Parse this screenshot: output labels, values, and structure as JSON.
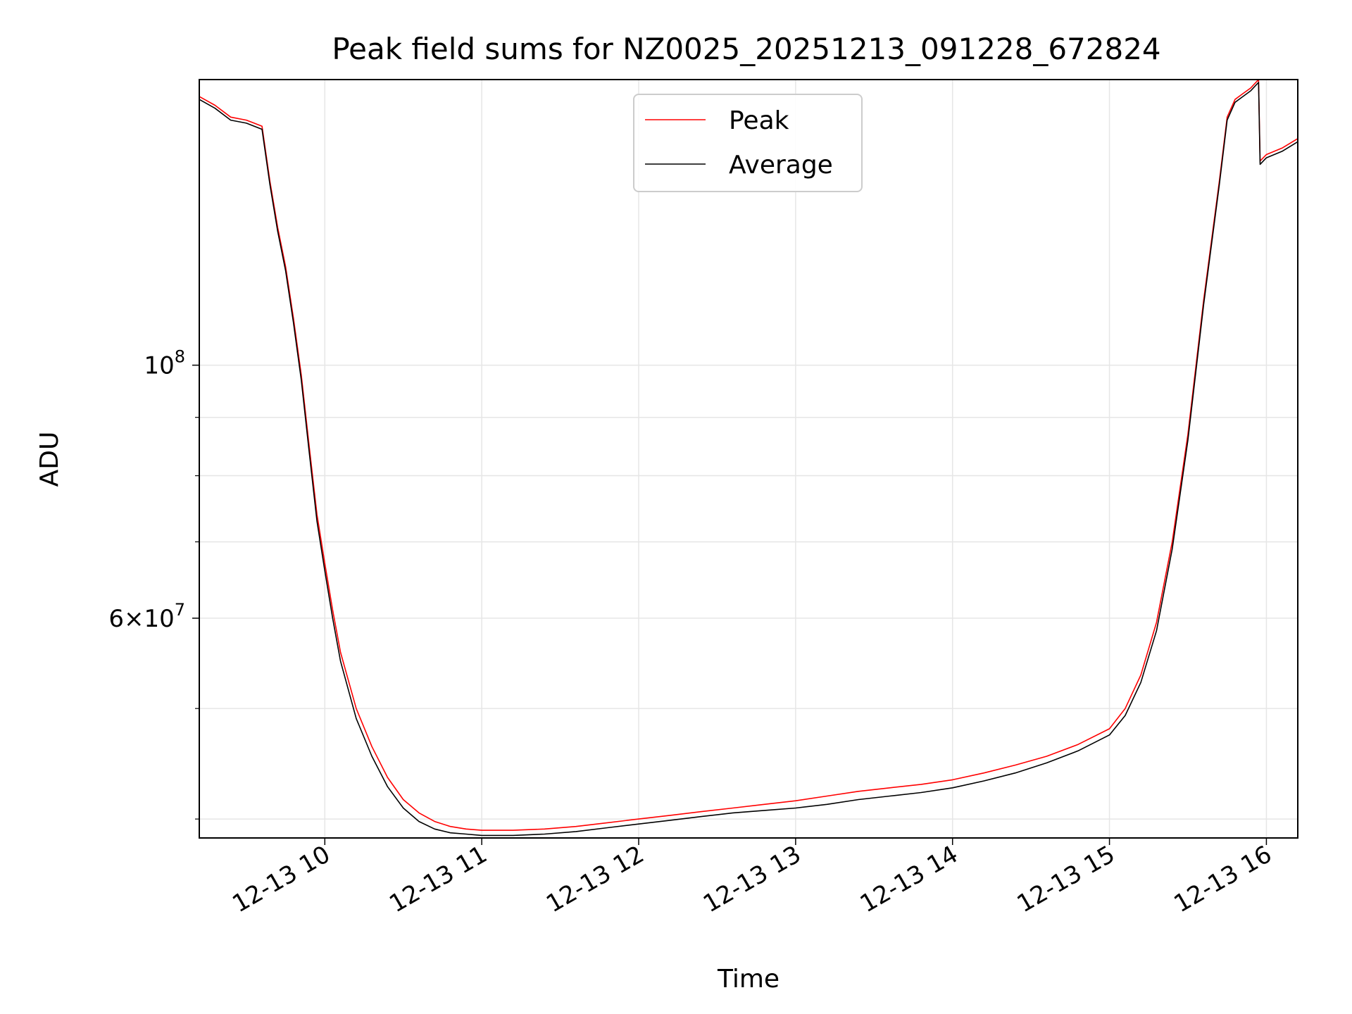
{
  "chart_data": {
    "type": "line",
    "title": "Peak field sums for NZ0025_20251213_091228_672824",
    "xlabel": "Time",
    "ylabel": "ADU",
    "yscale": "log",
    "x_unit": "hours since 2025-12-13 00:00",
    "xlim": [
      9.2,
      16.2
    ],
    "ylim": [
      38500000,
      178000000
    ],
    "grid": true,
    "legend_position": "upper center",
    "x_ticks": [
      {
        "value": 10,
        "label": "12-13 10"
      },
      {
        "value": 11,
        "label": "12-13 11"
      },
      {
        "value": 12,
        "label": "12-13 12"
      },
      {
        "value": 13,
        "label": "12-13 13"
      },
      {
        "value": 14,
        "label": "12-13 14"
      },
      {
        "value": 15,
        "label": "12-13 15"
      },
      {
        "value": 16,
        "label": "12-13 16"
      }
    ],
    "y_major_ticks": [
      {
        "value": 100000000,
        "base": "10",
        "exp": "8"
      },
      {
        "value": 60000000,
        "base": "6×10",
        "exp": "7"
      }
    ],
    "y_minor_ticks": [
      40000000,
      50000000,
      70000000,
      80000000,
      90000000
    ],
    "series": [
      {
        "name": "Peak",
        "color": "#ff0000",
        "x": [
          9.2,
          9.3,
          9.4,
          9.5,
          9.55,
          9.6,
          9.65,
          9.7,
          9.75,
          9.8,
          9.85,
          9.9,
          9.95,
          10.0,
          10.05,
          10.1,
          10.2,
          10.3,
          10.4,
          10.5,
          10.6,
          10.7,
          10.8,
          10.9,
          11.0,
          11.2,
          11.4,
          11.6,
          11.8,
          12.0,
          12.2,
          12.4,
          12.6,
          12.8,
          13.0,
          13.2,
          13.4,
          13.6,
          13.8,
          14.0,
          14.2,
          14.4,
          14.6,
          14.8,
          15.0,
          15.1,
          15.2,
          15.3,
          15.4,
          15.5,
          15.6,
          15.7,
          15.75,
          15.8,
          15.85,
          15.9,
          15.95,
          15.96,
          16.0,
          16.1,
          16.2
        ],
        "values": [
          172000000,
          169000000,
          165000000,
          164000000,
          163000000,
          162000000,
          145000000,
          132000000,
          122000000,
          110000000,
          98000000,
          85000000,
          74000000,
          67000000,
          61000000,
          56000000,
          50000000,
          46300000,
          43500000,
          41600000,
          40500000,
          39800000,
          39400000,
          39200000,
          39100000,
          39100000,
          39200000,
          39400000,
          39700000,
          40000000,
          40300000,
          40600000,
          40900000,
          41200000,
          41500000,
          41900000,
          42300000,
          42600000,
          42900000,
          43300000,
          43900000,
          44600000,
          45400000,
          46500000,
          48000000,
          50000000,
          53500000,
          59500000,
          70000000,
          87000000,
          114000000,
          145000000,
          165000000,
          171000000,
          173000000,
          175000000,
          178000000,
          151000000,
          153000000,
          155000000,
          158000000
        ]
      },
      {
        "name": "Average",
        "color": "#000000",
        "x": [
          9.2,
          9.3,
          9.4,
          9.5,
          9.55,
          9.6,
          9.65,
          9.7,
          9.75,
          9.8,
          9.85,
          9.9,
          9.95,
          10.0,
          10.05,
          10.1,
          10.2,
          10.3,
          10.4,
          10.5,
          10.6,
          10.7,
          10.8,
          10.9,
          11.0,
          11.2,
          11.4,
          11.6,
          11.8,
          12.0,
          12.2,
          12.4,
          12.6,
          12.8,
          13.0,
          13.2,
          13.4,
          13.6,
          13.8,
          14.0,
          14.2,
          14.4,
          14.6,
          14.8,
          15.0,
          15.1,
          15.2,
          15.3,
          15.4,
          15.5,
          15.6,
          15.7,
          15.75,
          15.8,
          15.85,
          15.9,
          15.95,
          15.96,
          16.0,
          16.1,
          16.2
        ],
        "values": [
          171000000,
          168000000,
          164000000,
          163000000,
          162000000,
          161000000,
          144000000,
          131000000,
          121000000,
          109000000,
          97000000,
          84000000,
          73000000,
          66000000,
          60000000,
          55000000,
          49000000,
          45400000,
          42700000,
          40900000,
          39800000,
          39200000,
          38900000,
          38800000,
          38700000,
          38700000,
          38800000,
          39000000,
          39300000,
          39600000,
          39900000,
          40200000,
          40500000,
          40700000,
          40900000,
          41200000,
          41600000,
          41900000,
          42200000,
          42600000,
          43200000,
          43900000,
          44800000,
          45900000,
          47400000,
          49300000,
          52700000,
          58500000,
          69000000,
          86000000,
          113000000,
          144000000,
          164000000,
          170000000,
          172000000,
          174000000,
          177000000,
          150000000,
          152000000,
          154000000,
          157000000
        ]
      }
    ]
  }
}
